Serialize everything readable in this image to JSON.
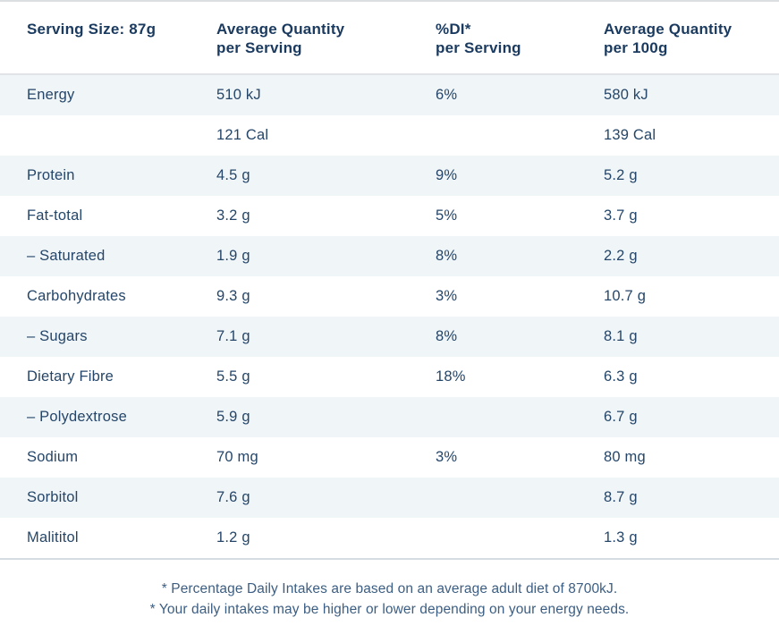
{
  "table": {
    "headers": [
      {
        "line1": "Serving Size: 87g",
        "line2": ""
      },
      {
        "line1": "Average Quantity",
        "line2": "per Serving"
      },
      {
        "line1": "%DI*",
        "line2": "per Serving"
      },
      {
        "line1": "Average Quantity",
        "line2": "per 100g"
      }
    ],
    "rows": [
      {
        "name": "Energy",
        "per_serving": "510 kJ",
        "di_per_serving": "6%",
        "per_100g": "580 kJ"
      },
      {
        "name": "",
        "per_serving": "121 Cal",
        "di_per_serving": "",
        "per_100g": "139 Cal"
      },
      {
        "name": "Protein",
        "per_serving": "4.5 g",
        "di_per_serving": "9%",
        "per_100g": "5.2 g"
      },
      {
        "name": "Fat-total",
        "per_serving": "3.2 g",
        "di_per_serving": "5%",
        "per_100g": "3.7 g"
      },
      {
        "name": "– Saturated",
        "per_serving": "1.9 g",
        "di_per_serving": "8%",
        "per_100g": "2.2 g"
      },
      {
        "name": "Carbohydrates",
        "per_serving": "9.3 g",
        "di_per_serving": "3%",
        "per_100g": "10.7 g"
      },
      {
        "name": "– Sugars",
        "per_serving": "7.1 g",
        "di_per_serving": "8%",
        "per_100g": "8.1 g"
      },
      {
        "name": "Dietary Fibre",
        "per_serving": "5.5 g",
        "di_per_serving": "18%",
        "per_100g": "6.3 g"
      },
      {
        "name": "– Polydextrose",
        "per_serving": "5.9 g",
        "di_per_serving": "",
        "per_100g": "6.7 g"
      },
      {
        "name": "Sodium",
        "per_serving": "70 mg",
        "di_per_serving": "3%",
        "per_100g": "80 mg"
      },
      {
        "name": "Sorbitol",
        "per_serving": "7.6 g",
        "di_per_serving": "",
        "per_100g": "8.7 g"
      },
      {
        "name": "Malititol",
        "per_serving": "1.2 g",
        "di_per_serving": "",
        "per_100g": "1.3 g"
      }
    ],
    "footnotes": [
      "* Percentage Daily Intakes are based on an average adult diet of 8700kJ.",
      "* Your daily intakes may be higher or lower depending on your energy needs."
    ]
  },
  "colors": {
    "header_text": "#1a3a5f",
    "body_text": "#254669",
    "footnote_text": "#3c5e82",
    "row_tint": "#f0f5f8",
    "divider": "#dcdfe1"
  }
}
